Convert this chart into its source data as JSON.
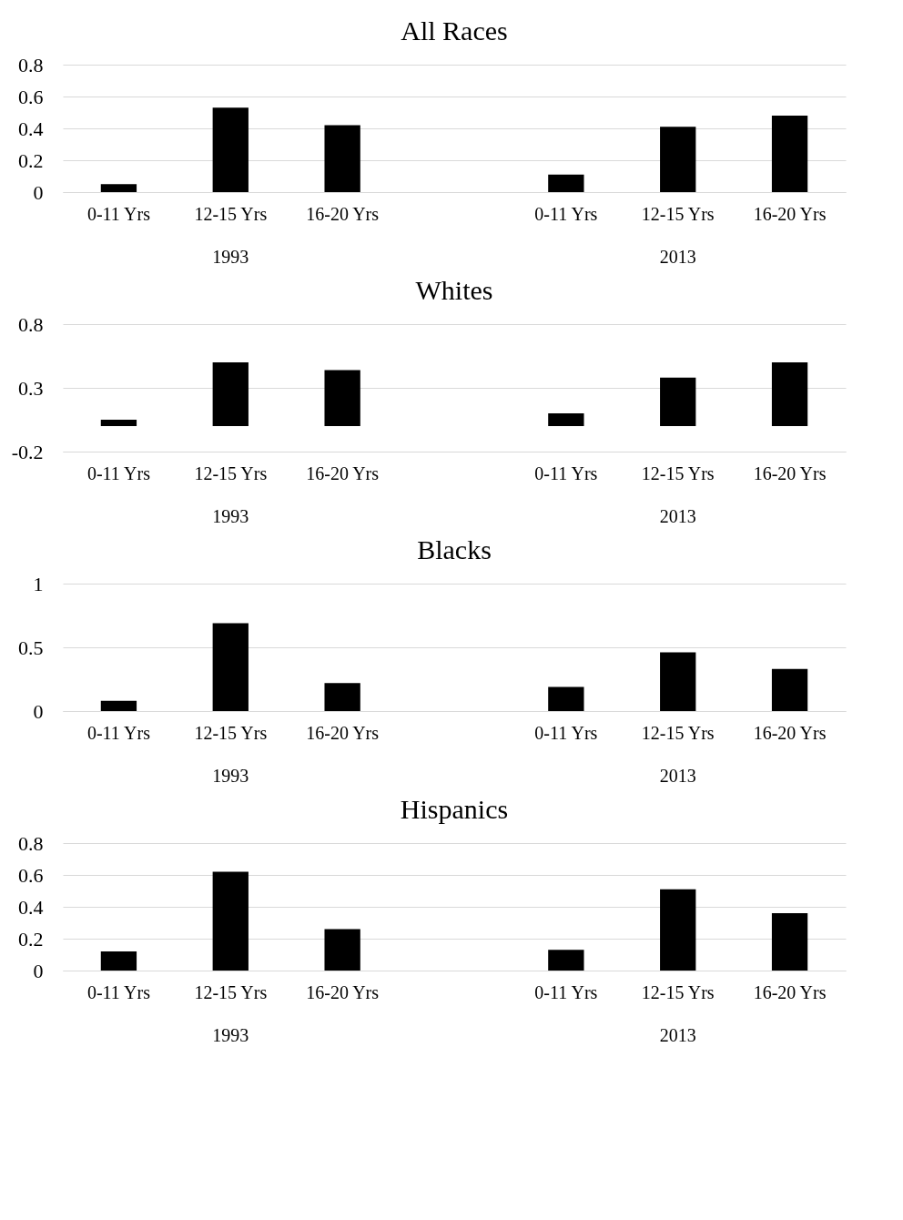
{
  "chart_data": [
    {
      "type": "bar",
      "title": "All Races",
      "categories": [
        "0-11 Yrs",
        "12-15 Yrs",
        "16-20 Yrs",
        null,
        "0-11 Yrs",
        "12-15 Yrs",
        "16-20 Yrs"
      ],
      "values": [
        0.05,
        0.53,
        0.42,
        null,
        0.11,
        0.41,
        0.48
      ],
      "color": "#000000",
      "ylim": [
        0,
        0.8
      ],
      "yticks": [
        0,
        0.2,
        0.4,
        0.6,
        0.8
      ],
      "grid": "y",
      "annotations": [
        "1993",
        "2013"
      ]
    },
    {
      "type": "bar",
      "title": "Whites",
      "categories": [
        "0-11 Yrs",
        "12-15 Yrs",
        "16-20 Yrs",
        null,
        "0-11 Yrs",
        "12-15 Yrs",
        "16-20 Yrs"
      ],
      "values": [
        0.05,
        0.5,
        0.44,
        null,
        0.1,
        0.38,
        0.5
      ],
      "color": "#000000",
      "ylim": [
        -0.2,
        0.8
      ],
      "yticks": [
        -0.2,
        0.3,
        0.8
      ],
      "grid": "y",
      "annotations": [
        "1993",
        "2013"
      ]
    },
    {
      "type": "bar",
      "title": "Blacks",
      "categories": [
        "0-11 Yrs",
        "12-15 Yrs",
        "16-20 Yrs",
        null,
        "0-11 Yrs",
        "12-15 Yrs",
        "16-20 Yrs"
      ],
      "values": [
        0.08,
        0.69,
        0.22,
        null,
        0.19,
        0.46,
        0.33
      ],
      "color": "#000000",
      "ylim": [
        0,
        1
      ],
      "yticks": [
        0,
        0.5,
        1
      ],
      "grid": "y",
      "annotations": [
        "1993",
        "2013"
      ]
    },
    {
      "type": "bar",
      "title": "Hispanics",
      "categories": [
        "0-11 Yrs",
        "12-15 Yrs",
        "16-20 Yrs",
        null,
        "0-11 Yrs",
        "12-15 Yrs",
        "16-20 Yrs"
      ],
      "values": [
        0.12,
        0.62,
        0.26,
        null,
        0.13,
        0.51,
        0.36
      ],
      "color": "#000000",
      "ylim": [
        0,
        0.8
      ],
      "yticks": [
        0,
        0.2,
        0.4,
        0.6,
        0.8
      ],
      "grid": "y",
      "annotations": [
        "1993",
        "2013"
      ]
    }
  ]
}
